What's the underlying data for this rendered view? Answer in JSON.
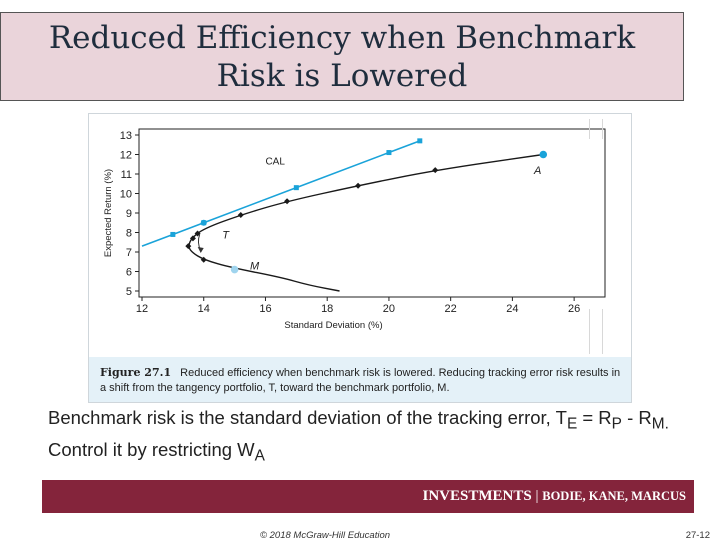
{
  "slide": {
    "title_line1": "Reduced Efficiency when Benchmark",
    "title_line2": "Risk is Lowered",
    "body_part1": "Benchmark risk is the standard deviation of the tracking error, T",
    "body_sub_e": "E",
    "body_part2": " = R",
    "body_sub_p": "P",
    "body_part3": " - R",
    "body_sub_m": "M.",
    "body_part4": " Control it by restricting W",
    "body_sub_a": "A",
    "footer_brand": "INVESTMENTS",
    "footer_sep": " | ",
    "footer_authors": "BODIE, KANE, MARCUS",
    "copyright": "© 2018 McGraw-Hill Education",
    "page_number": "27-12"
  },
  "figure": {
    "number": "Figure 27.1",
    "caption": "Reduced efficiency when benchmark risk is lowered. Reducing tracking error risk results in a shift from the tangency portfolio, T, toward the benchmark portfolio, M."
  },
  "colors": {
    "title_bg": "#ead4da",
    "footer_bg": "#84243b",
    "cal_color": "#1aa3d9",
    "frontier_color": "#1a1a1a",
    "caption_bg": "#e4f1f8"
  },
  "chart_data": {
    "type": "line",
    "xlabel": "Standard Deviation (%)",
    "ylabel": "Expected Return (%)",
    "xlim": [
      12,
      27
    ],
    "ylim": [
      5,
      13
    ],
    "xticks": [
      12,
      14,
      16,
      18,
      20,
      22,
      24,
      26
    ],
    "yticks": [
      5,
      6,
      7,
      8,
      9,
      10,
      11,
      12,
      13
    ],
    "grid": false,
    "series": [
      {
        "name": "CAL",
        "color": "#1aa3d9",
        "line_start": [
          12,
          7.3
        ],
        "x": [
          13,
          14,
          17,
          20,
          21
        ],
        "y": [
          7.9,
          8.5,
          10.3,
          12.1,
          12.7
        ]
      },
      {
        "name": "",
        "color": "#1a1a1a",
        "curve": [
          [
            18.4,
            5
          ],
          [
            17.4,
            5.3
          ],
          [
            16.5,
            5.7
          ],
          [
            14.9,
            6.2
          ],
          [
            14.0,
            6.6
          ],
          [
            13.6,
            7.0
          ],
          [
            13.5,
            7.3
          ],
          [
            13.6,
            7.7
          ],
          [
            14.0,
            8.2
          ],
          [
            15.2,
            8.9
          ],
          [
            16.7,
            9.6
          ],
          [
            19.0,
            10.4
          ],
          [
            21.5,
            11.2
          ],
          [
            25.0,
            12.0
          ]
        ],
        "x": [
          13.5,
          13.65,
          13.8,
          14.0,
          15.2,
          16.7,
          19.0,
          21.5
        ],
        "y": [
          7.3,
          7.7,
          7.95,
          6.6,
          8.9,
          9.6,
          10.4,
          11.2
        ]
      }
    ],
    "points": [
      {
        "label": "A",
        "x": 25.0,
        "y": 12.0,
        "color": "#1aa3d9"
      },
      {
        "label": "M",
        "x": 15.0,
        "y": 6.1,
        "color": "#9fd4ee"
      },
      {
        "label": "T",
        "x": 14.0,
        "y": 8.5,
        "color": "#1aa3d9"
      }
    ],
    "annotations": [
      {
        "text": "CAL",
        "x": 16.0,
        "y": 11.5
      },
      {
        "text": "A",
        "x": 24.7,
        "y": 11.0
      },
      {
        "text": "T",
        "x": 14.6,
        "y": 7.7
      },
      {
        "text": "M",
        "x": 15.5,
        "y": 6.1
      }
    ]
  }
}
